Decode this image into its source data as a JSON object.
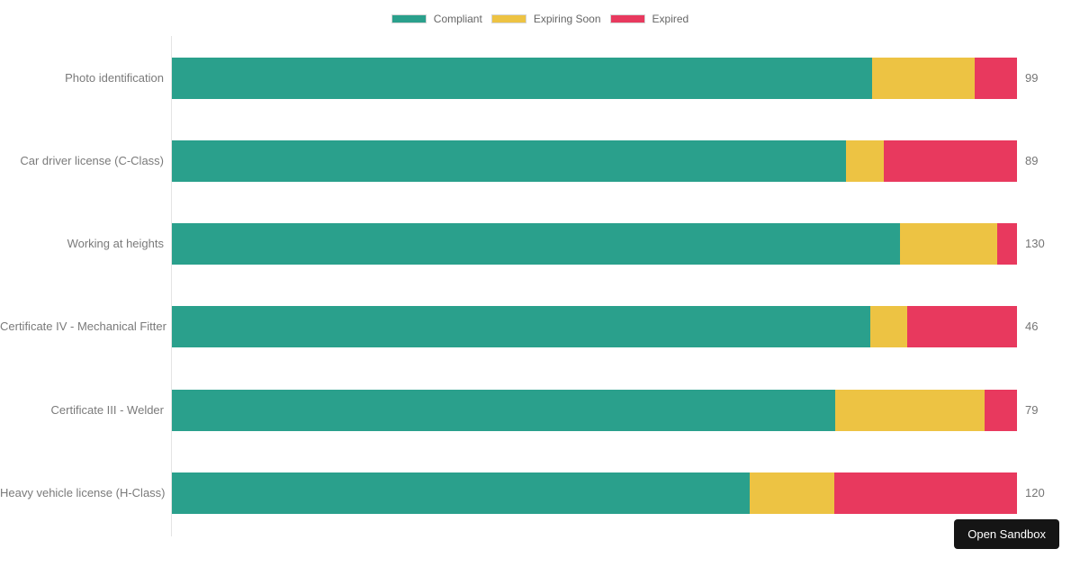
{
  "page": {
    "background": "#ffffff"
  },
  "legend": {
    "items": [
      {
        "label": "Compliant"
      },
      {
        "label": "Expiring Soon"
      },
      {
        "label": "Expired"
      }
    ]
  },
  "chart_data": {
    "type": "bar",
    "orientation": "horizontal",
    "stacked": "percent",
    "title": "",
    "xlabel": "",
    "ylabel": "",
    "grid": false,
    "legend_position": "top",
    "categories": [
      "Photo identification",
      "Car driver license (C-Class)",
      "Working at heights",
      "Certificate IV - Mechanical Fitter",
      "Certificate III - Welder",
      "Heavy vehicle license (H-Class)"
    ],
    "series": [
      {
        "name": "Compliant",
        "color": "#2aa08c",
        "values": [
          82,
          71,
          112,
          38,
          62,
          82
        ]
      },
      {
        "name": "Expiring Soon",
        "color": "#edc343",
        "values": [
          12,
          4,
          15,
          2,
          14,
          12
        ]
      },
      {
        "name": "Expired",
        "color": "#e8395e",
        "values": [
          5,
          14,
          3,
          6,
          3,
          26
        ]
      }
    ],
    "totals": [
      99,
      89,
      130,
      46,
      79,
      120
    ],
    "total_labels": [
      "99",
      "89",
      "130",
      "46",
      "79",
      "120"
    ]
  },
  "colors": {
    "axis_line": "#e4e4e4",
    "label_text": "#7a7a7a",
    "total_text": "#757575",
    "legend_text": "#666666"
  },
  "sandbox_button": {
    "label": "Open Sandbox",
    "background": "#151515",
    "text_color": "#ffffff"
  }
}
